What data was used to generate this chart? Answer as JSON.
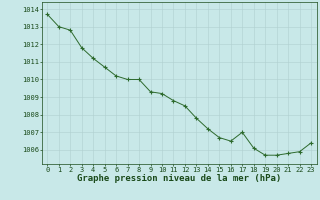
{
  "x": [
    0,
    1,
    2,
    3,
    4,
    5,
    6,
    7,
    8,
    9,
    10,
    11,
    12,
    13,
    14,
    15,
    16,
    17,
    18,
    19,
    20,
    21,
    22,
    23
  ],
  "y": [
    1013.7,
    1013.0,
    1012.8,
    1011.8,
    1011.2,
    1010.7,
    1010.2,
    1010.0,
    1010.0,
    1009.3,
    1009.2,
    1008.8,
    1008.5,
    1007.8,
    1007.2,
    1006.7,
    1006.5,
    1007.0,
    1006.1,
    1005.7,
    1005.7,
    1005.8,
    1005.9,
    1006.4
  ],
  "ylim": [
    1005.2,
    1014.4
  ],
  "yticks": [
    1006,
    1007,
    1008,
    1009,
    1010,
    1011,
    1012,
    1013,
    1014
  ],
  "xticks": [
    0,
    1,
    2,
    3,
    4,
    5,
    6,
    7,
    8,
    9,
    10,
    11,
    12,
    13,
    14,
    15,
    16,
    17,
    18,
    19,
    20,
    21,
    22,
    23
  ],
  "line_color": "#2d6a2d",
  "marker_color": "#2d6a2d",
  "bg_color": "#c8e8e8",
  "grid_color": "#b0d0d0",
  "axis_label_color": "#1a4a1a",
  "tick_color": "#1a4a1a",
  "xlabel": "Graphe pression niveau de la mer (hPa)",
  "xlabel_fontsize": 6.5,
  "tick_fontsize": 5.0
}
